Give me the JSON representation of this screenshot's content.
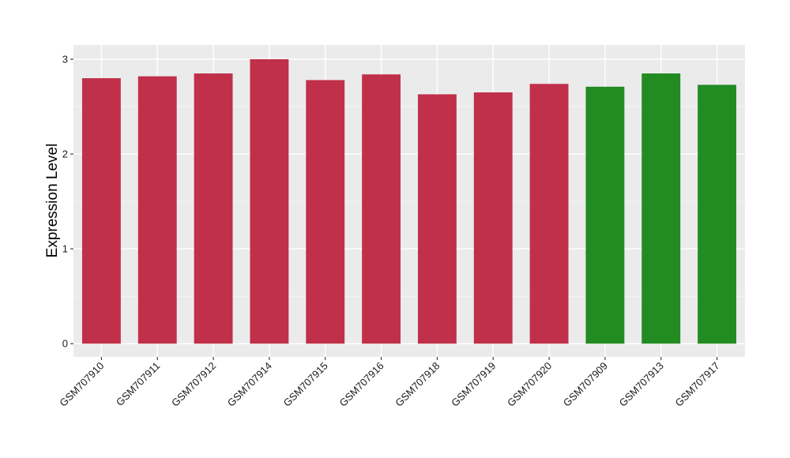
{
  "chart_data": {
    "type": "bar",
    "title": "",
    "xlabel": "",
    "ylabel": "Expression Level",
    "categories": [
      "GSM707910",
      "GSM707911",
      "GSM707912",
      "GSM707914",
      "GSM707915",
      "GSM707916",
      "GSM707918",
      "GSM707919",
      "GSM707920",
      "GSM707909",
      "GSM707913",
      "GSM707917"
    ],
    "values": [
      2.8,
      2.82,
      2.85,
      3.0,
      2.78,
      2.84,
      2.63,
      2.65,
      2.74,
      2.71,
      2.85,
      2.73
    ],
    "bar_groups": [
      "red",
      "red",
      "red",
      "red",
      "red",
      "red",
      "red",
      "red",
      "red",
      "green",
      "green",
      "green"
    ],
    "colors": {
      "red": "#c0304a",
      "green": "#228b22",
      "panel": "#ebebeb",
      "grid": "#ffffff"
    },
    "ylim": [
      -0.14,
      3.15
    ],
    "yticks": [
      0,
      1,
      2,
      3
    ],
    "grid": true,
    "legend": "none"
  }
}
